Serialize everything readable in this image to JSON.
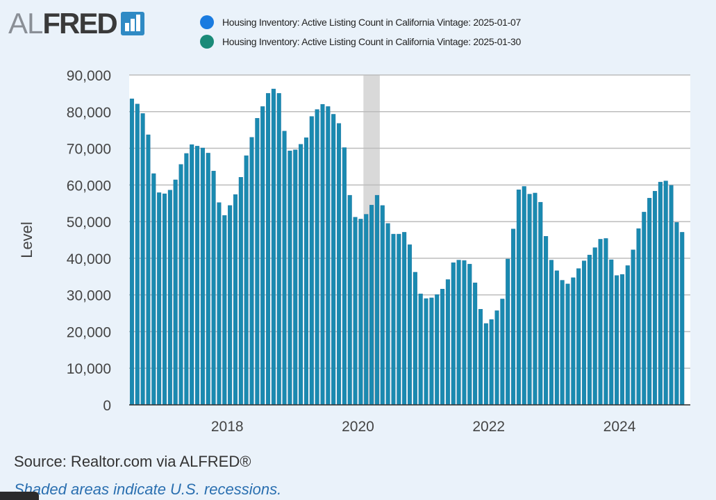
{
  "brand": {
    "logo_text_light": "AL",
    "logo_text_bold": "FRED"
  },
  "legend": [
    {
      "label": "Housing Inventory: Active Listing Count in California Vintage: 2025-01-07",
      "color": "#1a7be0"
    },
    {
      "label": "Housing Inventory: Active Listing Count in California Vintage: 2025-01-30",
      "color": "#1a8a78"
    }
  ],
  "footer": {
    "source": "Source: Realtor.com via ALFRED®",
    "note": "Shaded areas indicate U.S. recessions."
  },
  "colors": {
    "bar": "#1a8ab0",
    "bar_edge": "#1a6fa0",
    "recession": "#d9d9d9",
    "grid": "#bcbcbc",
    "plot_bg": "#ffffff"
  },
  "chart_data": {
    "type": "bar",
    "ylabel": "Level",
    "xlabel": "",
    "ylim": [
      0,
      90000
    ],
    "yticks": [
      0,
      10000,
      20000,
      30000,
      40000,
      50000,
      60000,
      70000,
      80000,
      90000
    ],
    "ytick_labels": [
      "0",
      "10,000",
      "20,000",
      "30,000",
      "40,000",
      "50,000",
      "60,000",
      "70,000",
      "80,000",
      "90,000"
    ],
    "xtick_labels": [
      "2018",
      "2020",
      "2022",
      "2024"
    ],
    "xtick_years": [
      2018,
      2020,
      2022,
      2024
    ],
    "start": "2016-07",
    "end": "2025-01",
    "recession": {
      "start": "2020-02",
      "end": "2020-04"
    },
    "series": [
      {
        "name": "Housing Inventory: Active Listing Count in California",
        "values": [
          83500,
          82100,
          79500,
          73700,
          63100,
          57900,
          57600,
          58600,
          61400,
          65600,
          68600,
          71000,
          70600,
          70100,
          68700,
          63800,
          55200,
          51700,
          54400,
          57400,
          62100,
          68000,
          73000,
          78200,
          81400,
          85000,
          86200,
          85000,
          74700,
          69300,
          69600,
          71100,
          72900,
          78700,
          80600,
          82000,
          81400,
          79300,
          76800,
          70200,
          57200,
          51200,
          50700,
          52000,
          54500,
          57200,
          54400,
          49500,
          46600,
          46600,
          47100,
          43700,
          36200,
          30300,
          29000,
          29200,
          30100,
          31600,
          34200,
          38800,
          39500,
          39400,
          38400,
          33300,
          26100,
          22200,
          23300,
          25700,
          28900,
          39800,
          48000,
          58700,
          59600,
          57500,
          57800,
          55300,
          46000,
          39500,
          36600,
          34000,
          33000,
          34700,
          37200,
          39300,
          40900,
          42900,
          45200,
          45400,
          39600,
          35300,
          35600,
          38000,
          42300,
          48100,
          52600,
          56400,
          58300,
          60800,
          61100,
          59900,
          49800,
          47100
        ]
      }
    ]
  }
}
